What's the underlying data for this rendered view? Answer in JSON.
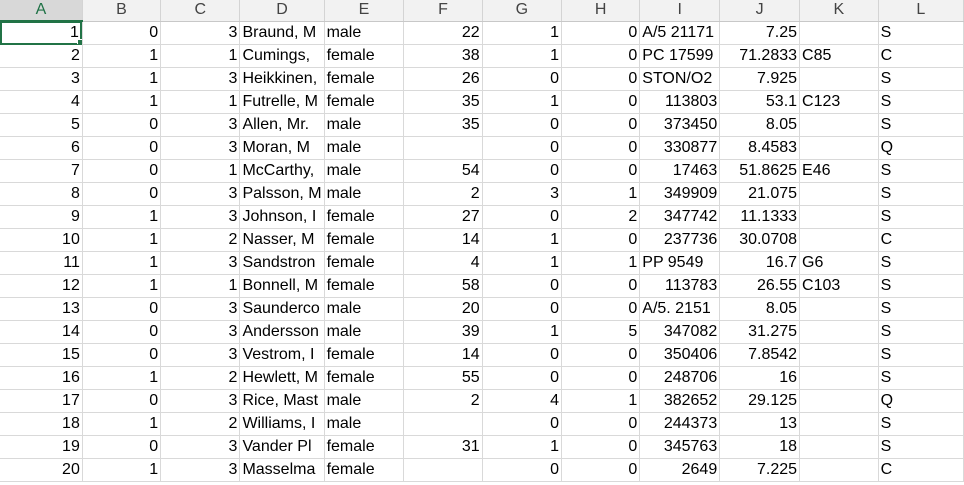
{
  "columns": [
    "A",
    "B",
    "C",
    "D",
    "E",
    "F",
    "G",
    "H",
    "I",
    "J",
    "K",
    "L"
  ],
  "rows": [
    [
      "1",
      "0",
      "3",
      "Braund, M",
      "male",
      "22",
      "1",
      "0",
      "A/5 21171",
      "7.25",
      "",
      "S"
    ],
    [
      "2",
      "1",
      "1",
      "Cumings, ",
      "female",
      "38",
      "1",
      "0",
      "PC 17599",
      "71.2833",
      "C85",
      "C"
    ],
    [
      "3",
      "1",
      "3",
      "Heikkinen,",
      "female",
      "26",
      "0",
      "0",
      "STON/O2",
      "7.925",
      "",
      "S"
    ],
    [
      "4",
      "1",
      "1",
      "Futrelle, M",
      "female",
      "35",
      "1",
      "0",
      "113803",
      "53.1",
      "C123",
      "S"
    ],
    [
      "5",
      "0",
      "3",
      "Allen, Mr.",
      "male",
      "35",
      "0",
      "0",
      "373450",
      "8.05",
      "",
      "S"
    ],
    [
      "6",
      "0",
      "3",
      "Moran, M",
      "male",
      "",
      "0",
      "0",
      "330877",
      "8.4583",
      "",
      "Q"
    ],
    [
      "7",
      "0",
      "1",
      "McCarthy,",
      "male",
      "54",
      "0",
      "0",
      "17463",
      "51.8625",
      "E46",
      "S"
    ],
    [
      "8",
      "0",
      "3",
      "Palsson, M",
      "male",
      "2",
      "3",
      "1",
      "349909",
      "21.075",
      "",
      "S"
    ],
    [
      "9",
      "1",
      "3",
      "Johnson, I",
      "female",
      "27",
      "0",
      "2",
      "347742",
      "11.1333",
      "",
      "S"
    ],
    [
      "10",
      "1",
      "2",
      "Nasser, M",
      "female",
      "14",
      "1",
      "0",
      "237736",
      "30.0708",
      "",
      "C"
    ],
    [
      "11",
      "1",
      "3",
      "Sandstron",
      "female",
      "4",
      "1",
      "1",
      "PP 9549",
      "16.7",
      "G6",
      "S"
    ],
    [
      "12",
      "1",
      "1",
      "Bonnell, M",
      "female",
      "58",
      "0",
      "0",
      "113783",
      "26.55",
      "C103",
      "S"
    ],
    [
      "13",
      "0",
      "3",
      "Saunderco",
      "male",
      "20",
      "0",
      "0",
      "A/5. 2151",
      "8.05",
      "",
      "S"
    ],
    [
      "14",
      "0",
      "3",
      "Andersson",
      "male",
      "39",
      "1",
      "5",
      "347082",
      "31.275",
      "",
      "S"
    ],
    [
      "15",
      "0",
      "3",
      "Vestrom, I",
      "female",
      "14",
      "0",
      "0",
      "350406",
      "7.8542",
      "",
      "S"
    ],
    [
      "16",
      "1",
      "2",
      "Hewlett, M",
      "female",
      "55",
      "0",
      "0",
      "248706",
      "16",
      "",
      "S"
    ],
    [
      "17",
      "0",
      "3",
      "Rice, Mast",
      "male",
      "2",
      "4",
      "1",
      "382652",
      "29.125",
      "",
      "Q"
    ],
    [
      "18",
      "1",
      "2",
      "Williams, I",
      "male",
      "",
      "0",
      "0",
      "244373",
      "13",
      "",
      "S"
    ],
    [
      "19",
      "0",
      "3",
      "Vander Pl",
      "female",
      "31",
      "1",
      "0",
      "345763",
      "18",
      "",
      "S"
    ],
    [
      "20",
      "1",
      "3",
      "Masselma",
      "female",
      "",
      "0",
      "0",
      "2649",
      "7.225",
      "",
      "C"
    ]
  ],
  "active_cell": "A1"
}
